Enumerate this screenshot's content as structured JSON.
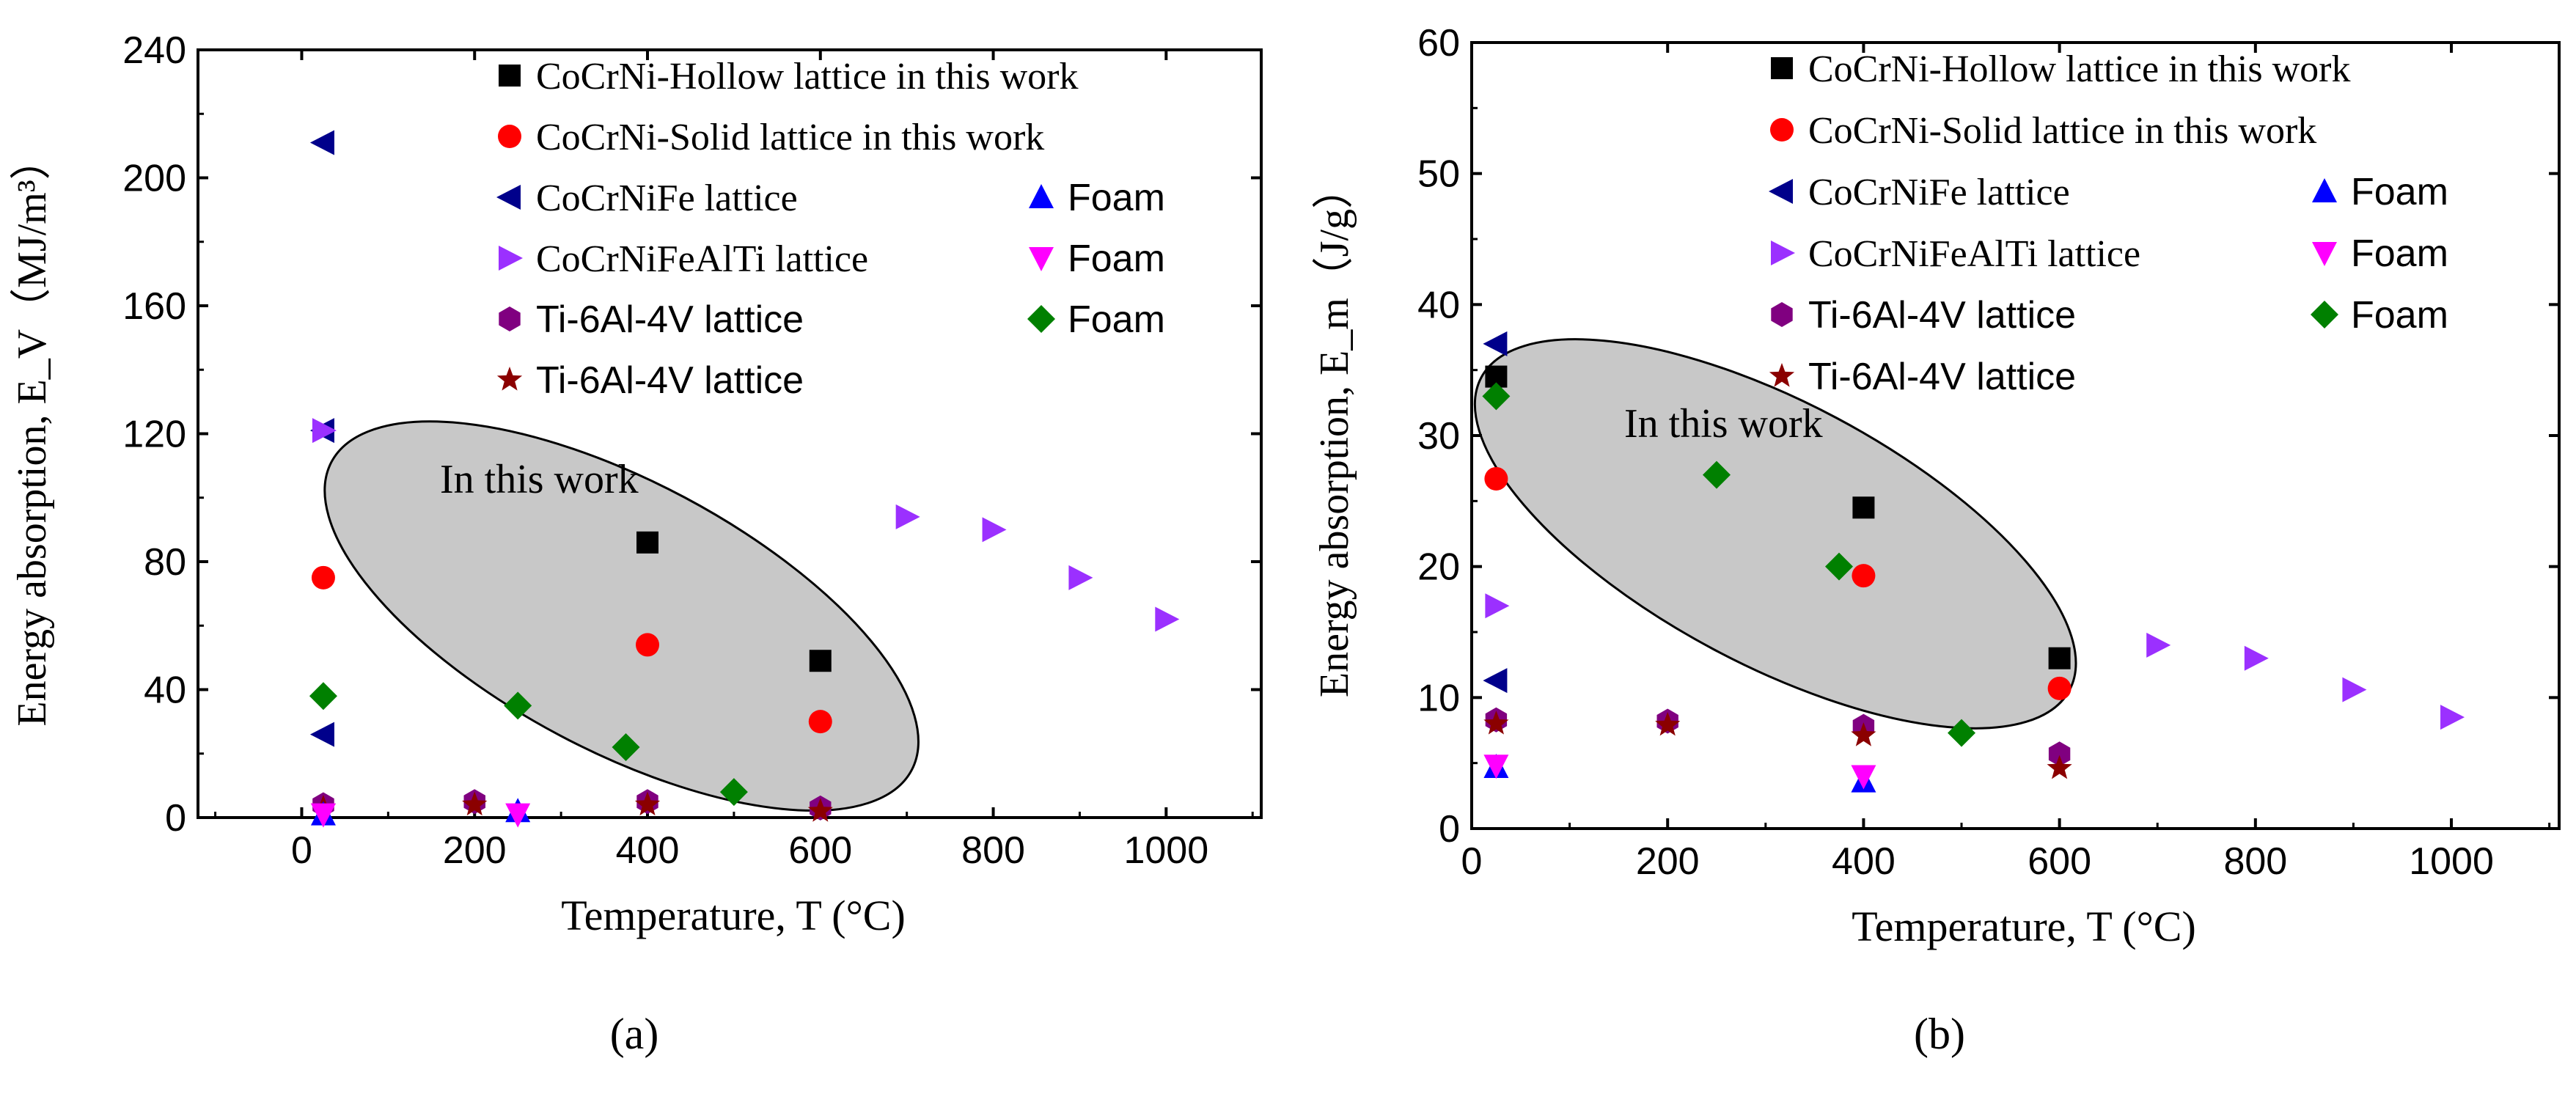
{
  "chart_data": [
    {
      "type": "scatter",
      "panel_label": "(a)",
      "xlabel": "Temperature, T (°C)",
      "ylabel": "Energy absorption, E_V（MJ/m³）",
      "xlim": [
        -120,
        1110
      ],
      "ylim": [
        0,
        240
      ],
      "xticks": [
        0,
        200,
        400,
        600,
        800,
        1000
      ],
      "yticks": [
        0,
        40,
        80,
        120,
        160,
        200,
        240
      ],
      "annotation": "In this work",
      "highlight_region": {
        "cx": 370,
        "cy": 63,
        "rx": 380,
        "ry": 42,
        "rotation_deg": 28
      },
      "series": [
        {
          "name": "CoCrNi-Hollow lattice in this work",
          "legend_label": "CoCrNi-Hollow lattice in this work",
          "marker": "square",
          "color": "#000000",
          "points": [
            [
              400,
              86
            ],
            [
              600,
              49
            ]
          ]
        },
        {
          "name": "CoCrNi-Solid lattice in this work",
          "legend_label": "CoCrNi-Solid lattice in this work",
          "marker": "circle",
          "color": "#ff0000",
          "points": [
            [
              25,
              75
            ],
            [
              400,
              54
            ],
            [
              600,
              30
            ]
          ]
        },
        {
          "name": "CoCrNiFe lattice",
          "legend_label": "CoCrNiFe lattice",
          "marker": "triangle-left",
          "color": "#00008b",
          "points": [
            [
              25,
              211
            ],
            [
              25,
              121
            ],
            [
              25,
              26
            ]
          ]
        },
        {
          "name": "CoCrNiFeAlTi lattice",
          "legend_label": "CoCrNiFeAlTi lattice",
          "marker": "triangle-right",
          "color": "#9b30ff",
          "points": [
            [
              25,
              121
            ],
            [
              700,
              94
            ],
            [
              800,
              90
            ],
            [
              900,
              75
            ],
            [
              1000,
              62
            ]
          ]
        },
        {
          "name": "Ti-6Al-4V lattice (hexagon)",
          "legend_label": "Ti-6Al-4V lattice",
          "marker": "hexagon",
          "color": "#800080",
          "points": [
            [
              25,
              4
            ],
            [
              200,
              5
            ],
            [
              400,
              5
            ],
            [
              600,
              3
            ]
          ]
        },
        {
          "name": "Ti-6Al-4V lattice (star)",
          "legend_label": "Ti-6Al-4V lattice",
          "marker": "star",
          "color": "#8b0000",
          "points": [
            [
              25,
              3
            ],
            [
              200,
              4
            ],
            [
              400,
              4
            ],
            [
              600,
              2
            ]
          ]
        },
        {
          "name": "Foam (triangle-up)",
          "legend_label": "Foam",
          "marker": "triangle-up",
          "color": "#0000ff",
          "points": [
            [
              25,
              1
            ],
            [
              250,
              2
            ]
          ]
        },
        {
          "name": "Foam (triangle-down)",
          "legend_label": "Foam",
          "marker": "triangle-down",
          "color": "#ff00ff",
          "points": [
            [
              25,
              1
            ],
            [
              250,
              1
            ]
          ]
        },
        {
          "name": "Foam (diamond)",
          "legend_label": "Foam",
          "marker": "diamond",
          "color": "#008000",
          "points": [
            [
              25,
              38
            ],
            [
              250,
              35
            ],
            [
              375,
              22
            ],
            [
              500,
              8
            ]
          ]
        }
      ]
    },
    {
      "type": "scatter",
      "panel_label": "(b)",
      "xlabel": "Temperature, T (°C)",
      "ylabel": "Energy absorption, E_m（J/g）",
      "xlim": [
        0,
        1110
      ],
      "ylim": [
        0,
        60
      ],
      "xticks": [
        0,
        200,
        400,
        600,
        800,
        1000
      ],
      "yticks": [
        0,
        10,
        20,
        30,
        40,
        50,
        60
      ],
      "annotation": "In this work",
      "highlight_region": {
        "cx": 310,
        "cy": 22.5,
        "rx": 340,
        "ry": 10,
        "rotation_deg": 28
      },
      "series": [
        {
          "name": "CoCrNi-Hollow lattice in this work",
          "legend_label": "CoCrNi-Hollow lattice in this work",
          "marker": "square",
          "color": "#000000",
          "points": [
            [
              25,
              34.5
            ],
            [
              400,
              24.5
            ],
            [
              600,
              13
            ]
          ]
        },
        {
          "name": "CoCrNi-Solid lattice in this work",
          "legend_label": "CoCrNi-Solid lattice in this work",
          "marker": "circle",
          "color": "#ff0000",
          "points": [
            [
              25,
              26.7
            ],
            [
              400,
              19.3
            ],
            [
              600,
              10.7
            ]
          ]
        },
        {
          "name": "CoCrNiFe lattice",
          "legend_label": "CoCrNiFe lattice",
          "marker": "triangle-left",
          "color": "#00008b",
          "points": [
            [
              25,
              37
            ],
            [
              25,
              11.3
            ]
          ]
        },
        {
          "name": "CoCrNiFeAlTi lattice",
          "legend_label": "CoCrNiFeAlTi lattice",
          "marker": "triangle-right",
          "color": "#9b30ff",
          "points": [
            [
              25,
              17
            ],
            [
              700,
              14
            ],
            [
              800,
              13
            ],
            [
              900,
              10.6
            ],
            [
              1000,
              8.5
            ]
          ]
        },
        {
          "name": "Ti-6Al-4V lattice (hexagon)",
          "legend_label": "Ti-6Al-4V lattice",
          "marker": "hexagon",
          "color": "#800080",
          "points": [
            [
              25,
              8.3
            ],
            [
              200,
              8.2
            ],
            [
              400,
              7.8
            ],
            [
              600,
              5.7
            ]
          ]
        },
        {
          "name": "Ti-6Al-4V lattice (star)",
          "legend_label": "Ti-6Al-4V lattice",
          "marker": "star",
          "color": "#8b0000",
          "points": [
            [
              25,
              8
            ],
            [
              200,
              7.9
            ],
            [
              400,
              7.1
            ],
            [
              600,
              4.6
            ]
          ]
        },
        {
          "name": "Foam (triangle-up)",
          "legend_label": "Foam",
          "marker": "triangle-up",
          "color": "#0000ff",
          "points": [
            [
              25,
              4.7
            ],
            [
              400,
              3.6
            ]
          ]
        },
        {
          "name": "Foam (triangle-down)",
          "legend_label": "Foam",
          "marker": "triangle-down",
          "color": "#ff00ff",
          "points": [
            [
              25,
              4.8
            ],
            [
              400,
              4
            ]
          ]
        },
        {
          "name": "Foam (diamond)",
          "legend_label": "Foam",
          "marker": "diamond",
          "color": "#008000",
          "points": [
            [
              25,
              33
            ],
            [
              250,
              27
            ],
            [
              375,
              20
            ],
            [
              500,
              7.3
            ]
          ]
        }
      ]
    }
  ]
}
